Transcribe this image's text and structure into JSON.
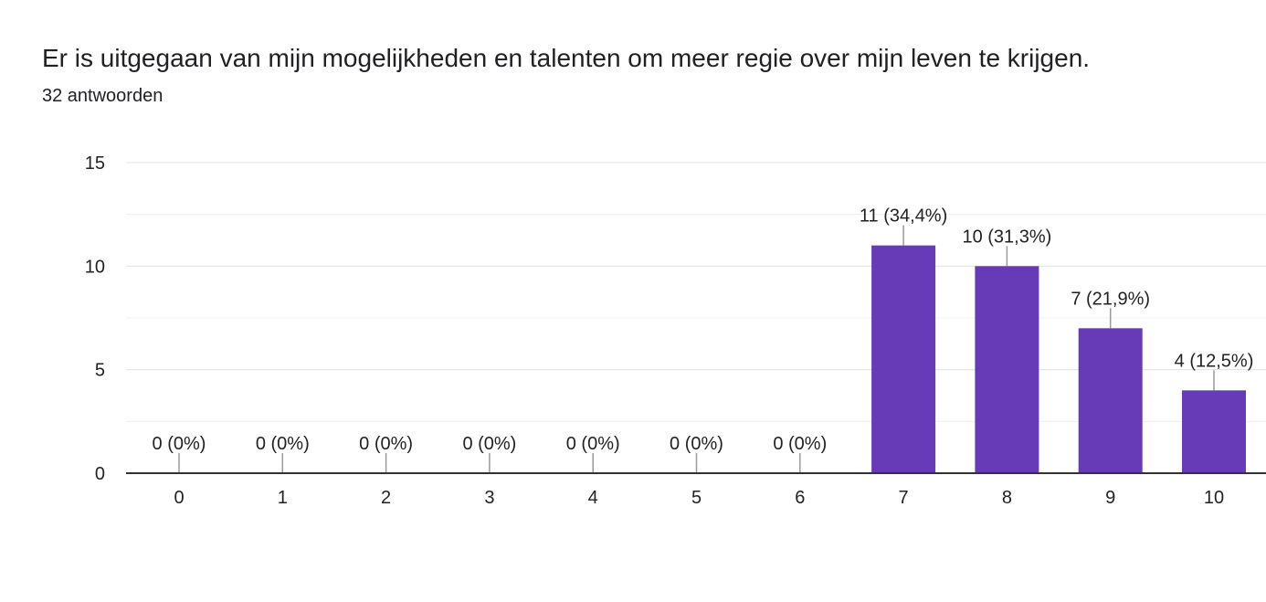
{
  "title": "Er is uitgegaan van mijn mogelijkheden en talenten om meer regie over mijn leven te krijgen.",
  "subtitle": "32 antwoorden",
  "chart_data": {
    "type": "bar",
    "categories": [
      "0",
      "1",
      "2",
      "3",
      "4",
      "5",
      "6",
      "7",
      "8",
      "9",
      "10"
    ],
    "values": [
      0,
      0,
      0,
      0,
      0,
      0,
      0,
      11,
      10,
      7,
      4
    ],
    "data_labels": [
      "0 (0%)",
      "0 (0%)",
      "0 (0%)",
      "0 (0%)",
      "0 (0%)",
      "0 (0%)",
      "0 (0%)",
      "11 (34,4%)",
      "10 (31,3%)",
      "7 (21,9%)",
      "4 (12,5%)"
    ],
    "ylim": [
      0,
      15
    ],
    "yticks": [
      "0",
      "5",
      "10",
      "15"
    ],
    "grid": true,
    "bar_color": "#673ab7"
  }
}
